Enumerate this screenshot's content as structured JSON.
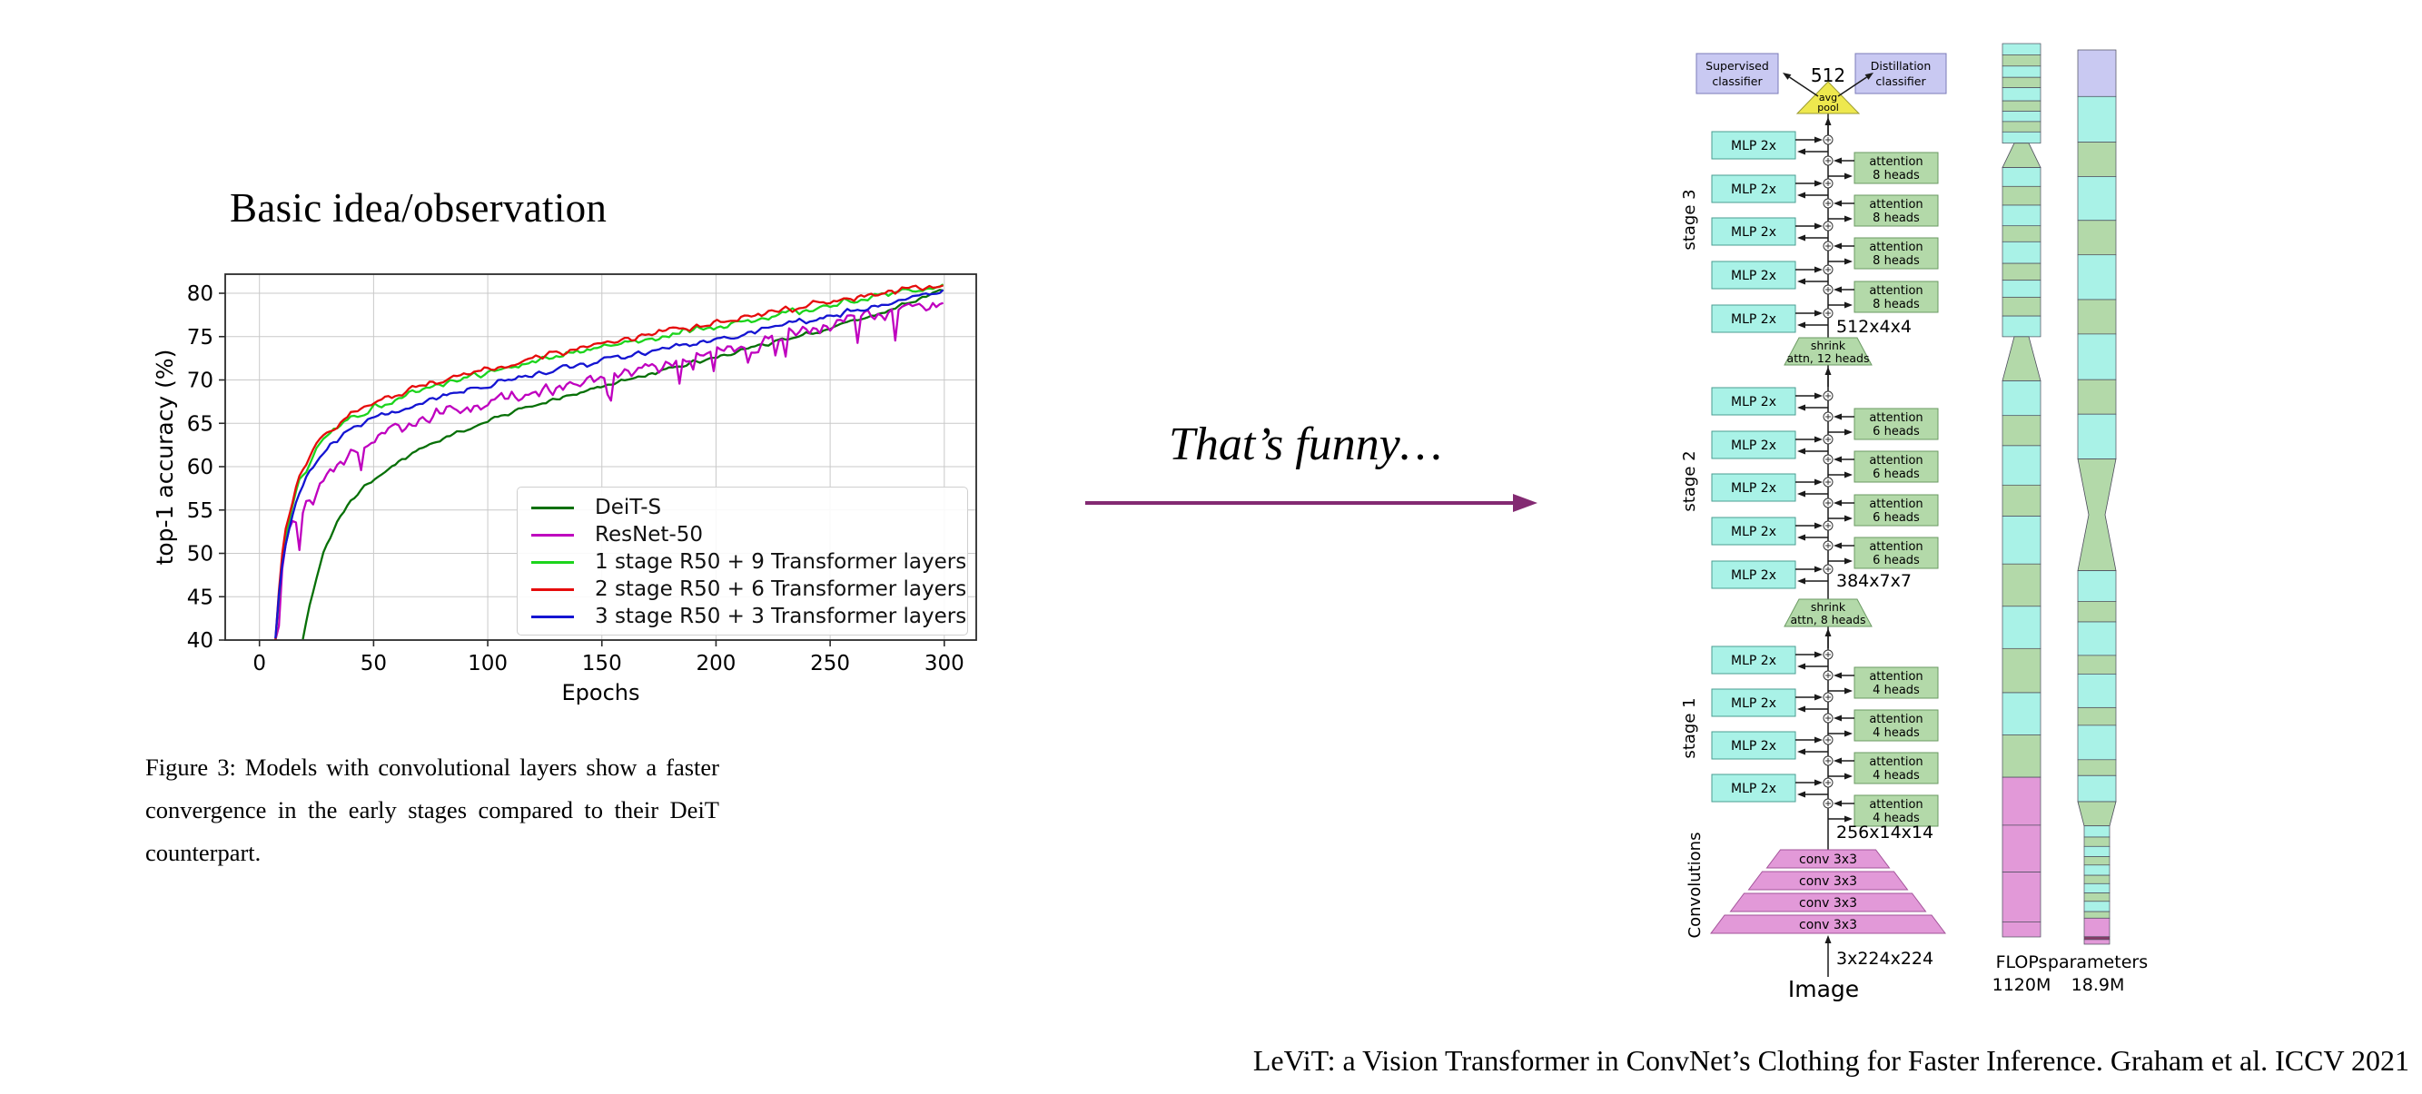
{
  "slide": {
    "title": "Basic idea/observation",
    "aside": "That’s funny…",
    "citation": "LeViT: a Vision Transformer in ConvNet’s Clothing for Faster Inference. Graham et al. ICCV 2021",
    "caption_lines": [
      "Figure 3:  Models with convolutional layers show a faster",
      "convergence in the early stages compared to their DeiT",
      "counterpart."
    ],
    "arrow_color": "#832a72"
  },
  "chart_data": {
    "type": "line",
    "title": "",
    "xlabel": "Epochs",
    "ylabel": "top-1 accuracy (%)",
    "xlim": [
      -15,
      314
    ],
    "ylim": [
      40,
      82.2
    ],
    "xticks": [
      0,
      50,
      100,
      150,
      200,
      250,
      300
    ],
    "yticks": [
      40,
      45,
      50,
      55,
      60,
      65,
      70,
      75,
      80
    ],
    "grid": true,
    "legend_position": "inside lower-right",
    "series": [
      {
        "name": "DeiT-S",
        "color": "#077007",
        "noise": 0.28,
        "points": [
          [
            19,
            40
          ],
          [
            22,
            44
          ],
          [
            25,
            47
          ],
          [
            28,
            50
          ],
          [
            32,
            52.5
          ],
          [
            36,
            54.5
          ],
          [
            40,
            56
          ],
          [
            45,
            57.5
          ],
          [
            50,
            58.5
          ],
          [
            60,
            60.5
          ],
          [
            70,
            62
          ],
          [
            80,
            63.2
          ],
          [
            90,
            64.3
          ],
          [
            100,
            65.3
          ],
          [
            110,
            66.2
          ],
          [
            120,
            67
          ],
          [
            130,
            67.8
          ],
          [
            140,
            68.5
          ],
          [
            150,
            69.2
          ],
          [
            160,
            70
          ],
          [
            170,
            70.6
          ],
          [
            180,
            71.3
          ],
          [
            190,
            72
          ],
          [
            200,
            72.6
          ],
          [
            210,
            73.3
          ],
          [
            220,
            74
          ],
          [
            230,
            74.6
          ],
          [
            240,
            75.3
          ],
          [
            250,
            76
          ],
          [
            260,
            76.8
          ],
          [
            270,
            77.6
          ],
          [
            280,
            78.5
          ],
          [
            290,
            79.4
          ],
          [
            297,
            80.2
          ],
          [
            300,
            80.4
          ]
        ]
      },
      {
        "name": "ResNet-50",
        "color": "#bf00bf",
        "noise": 1.0,
        "points": [
          [
            7,
            40
          ],
          [
            9,
            46
          ],
          [
            11,
            50
          ],
          [
            13,
            52.5
          ],
          [
            15,
            54
          ],
          [
            17,
            53.5
          ],
          [
            20,
            56
          ],
          [
            23,
            55.5
          ],
          [
            26,
            58
          ],
          [
            30,
            59
          ],
          [
            35,
            60.5
          ],
          [
            40,
            61.5
          ],
          [
            45,
            62.5
          ],
          [
            50,
            63
          ],
          [
            60,
            64.3
          ],
          [
            70,
            65.2
          ],
          [
            80,
            66
          ],
          [
            90,
            66.7
          ],
          [
            100,
            67.3
          ],
          [
            110,
            68
          ],
          [
            120,
            68.5
          ],
          [
            130,
            69.2
          ],
          [
            140,
            69.8
          ],
          [
            150,
            70.3
          ],
          [
            160,
            70.8
          ],
          [
            170,
            71.3
          ],
          [
            180,
            71.9
          ],
          [
            190,
            72.4
          ],
          [
            200,
            73
          ],
          [
            210,
            73.6
          ],
          [
            220,
            74.2
          ],
          [
            230,
            74.9
          ],
          [
            240,
            75.6
          ],
          [
            250,
            76.3
          ],
          [
            260,
            77
          ],
          [
            270,
            77.6
          ],
          [
            280,
            78.1
          ],
          [
            290,
            78.5
          ],
          [
            300,
            78.7
          ]
        ]
      },
      {
        "name": "1 stage R50 + 9 Transformer layers",
        "color": "#1cd41c",
        "noise": 0.5,
        "points": [
          [
            7,
            40
          ],
          [
            9,
            47
          ],
          [
            11,
            51.5
          ],
          [
            13,
            54
          ],
          [
            15,
            56
          ],
          [
            18,
            58.5
          ],
          [
            21,
            60
          ],
          [
            25,
            62
          ],
          [
            30,
            63.5
          ],
          [
            35,
            64.7
          ],
          [
            40,
            65.6
          ],
          [
            45,
            66.2
          ],
          [
            50,
            66.8
          ],
          [
            60,
            67.9
          ],
          [
            70,
            68.8
          ],
          [
            80,
            69.6
          ],
          [
            90,
            70.3
          ],
          [
            100,
            70.9
          ],
          [
            110,
            71.5
          ],
          [
            120,
            72.1
          ],
          [
            130,
            72.7
          ],
          [
            140,
            73.2
          ],
          [
            150,
            73.7
          ],
          [
            160,
            74.2
          ],
          [
            170,
            74.7
          ],
          [
            180,
            75.2
          ],
          [
            190,
            75.7
          ],
          [
            200,
            76.2
          ],
          [
            210,
            76.7
          ],
          [
            220,
            77.2
          ],
          [
            230,
            77.7
          ],
          [
            240,
            78.2
          ],
          [
            250,
            78.7
          ],
          [
            260,
            79.2
          ],
          [
            270,
            79.7
          ],
          [
            280,
            80.1
          ],
          [
            290,
            80.5
          ],
          [
            300,
            80.8
          ]
        ]
      },
      {
        "name": "2 stage R50 + 6 Transformer layers",
        "color": "#e60c0c",
        "noise": 0.45,
        "points": [
          [
            7,
            40
          ],
          [
            9,
            47.5
          ],
          [
            11,
            52
          ],
          [
            13,
            54.5
          ],
          [
            15,
            56.5
          ],
          [
            18,
            59
          ],
          [
            21,
            60.5
          ],
          [
            25,
            62.4
          ],
          [
            30,
            63.9
          ],
          [
            35,
            65
          ],
          [
            40,
            66
          ],
          [
            45,
            66.6
          ],
          [
            50,
            67.2
          ],
          [
            60,
            68.3
          ],
          [
            70,
            69.2
          ],
          [
            80,
            70
          ],
          [
            90,
            70.7
          ],
          [
            100,
            71.3
          ],
          [
            110,
            71.9
          ],
          [
            120,
            72.5
          ],
          [
            130,
            73.1
          ],
          [
            140,
            73.6
          ],
          [
            150,
            74.1
          ],
          [
            160,
            74.6
          ],
          [
            170,
            75.1
          ],
          [
            180,
            75.6
          ],
          [
            190,
            76.1
          ],
          [
            200,
            76.6
          ],
          [
            210,
            77.1
          ],
          [
            220,
            77.6
          ],
          [
            230,
            78.1
          ],
          [
            240,
            78.6
          ],
          [
            250,
            79
          ],
          [
            260,
            79.5
          ],
          [
            270,
            79.9
          ],
          [
            280,
            80.3
          ],
          [
            290,
            80.7
          ],
          [
            300,
            81
          ]
        ]
      },
      {
        "name": "3 stage R50 + 3 Transformer layers",
        "color": "#1414d2",
        "noise": 0.45,
        "points": [
          [
            7,
            40
          ],
          [
            9,
            46.5
          ],
          [
            11,
            50.5
          ],
          [
            13,
            53
          ],
          [
            15,
            55
          ],
          [
            18,
            57.5
          ],
          [
            21,
            59
          ],
          [
            25,
            60.8
          ],
          [
            30,
            62.2
          ],
          [
            35,
            63.3
          ],
          [
            40,
            64.2
          ],
          [
            45,
            64.9
          ],
          [
            50,
            65.5
          ],
          [
            60,
            66.5
          ],
          [
            70,
            67.4
          ],
          [
            80,
            68.1
          ],
          [
            90,
            68.8
          ],
          [
            100,
            69.4
          ],
          [
            110,
            70
          ],
          [
            120,
            70.6
          ],
          [
            130,
            71.2
          ],
          [
            140,
            71.7
          ],
          [
            150,
            72.2
          ],
          [
            160,
            72.7
          ],
          [
            170,
            73.2
          ],
          [
            180,
            73.7
          ],
          [
            190,
            74.2
          ],
          [
            200,
            74.8
          ],
          [
            210,
            75.3
          ],
          [
            220,
            75.8
          ],
          [
            230,
            76.3
          ],
          [
            240,
            76.9
          ],
          [
            250,
            77.4
          ],
          [
            260,
            78
          ],
          [
            270,
            78.6
          ],
          [
            280,
            79.2
          ],
          [
            290,
            79.8
          ],
          [
            300,
            80.2
          ]
        ]
      }
    ]
  },
  "architecture": {
    "supervised_label": [
      "Supervised",
      "classifier"
    ],
    "distillation_label": [
      "Distillation",
      "classifier"
    ],
    "width_label": "512",
    "pool_label": [
      "avg",
      "pool"
    ],
    "stages": [
      {
        "name": "stage 3",
        "mlp": "MLP 2x",
        "mlp_count": 5,
        "attn": [
          "attention",
          "8 heads"
        ],
        "attn_count": 4,
        "out": "512x4x4",
        "shrink": [
          "shrink",
          "attn, 12 heads"
        ]
      },
      {
        "name": "stage 2",
        "mlp": "MLP 2x",
        "mlp_count": 5,
        "attn": [
          "attention",
          "6 heads"
        ],
        "attn_count": 4,
        "out": "384x7x7",
        "shrink": [
          "shrink",
          "attn, 8 heads"
        ]
      },
      {
        "name": "stage 1",
        "mlp": "MLP 2x",
        "mlp_count": 4,
        "attn": [
          "attention",
          "4 heads"
        ],
        "attn_count": 4,
        "out": "256x14x14",
        "shrink": null
      }
    ],
    "conv": {
      "name": "Convolutions",
      "label": "conv 3x3",
      "count": 4,
      "input": "3x224x224",
      "image": "Image"
    },
    "bars": {
      "flops": {
        "title": "FLOPs",
        "value": "1120M",
        "segments": [
          [
            "c",
            12
          ],
          [
            "g",
            12
          ],
          [
            "c",
            12
          ],
          [
            "g",
            11
          ],
          [
            "c",
            14
          ],
          [
            "g",
            11
          ],
          [
            "c",
            11
          ],
          [
            "g",
            11
          ],
          [
            "c",
            12
          ],
          [
            "t0",
            26
          ],
          [
            "c",
            20
          ],
          [
            "g",
            20
          ],
          [
            "c",
            22
          ],
          [
            "g",
            17
          ],
          [
            "c",
            23
          ],
          [
            "g",
            18
          ],
          [
            "c",
            18
          ],
          [
            "g",
            20
          ],
          [
            "c",
            22
          ],
          [
            "t0",
            47
          ],
          [
            "c",
            37
          ],
          [
            "g",
            32
          ],
          [
            "c",
            42
          ],
          [
            "g",
            33
          ],
          [
            "c",
            51
          ],
          [
            "g",
            45
          ],
          [
            "c",
            45
          ],
          [
            "g",
            47
          ],
          [
            "c",
            45
          ],
          [
            "g",
            45
          ],
          [
            "p",
            51
          ],
          [
            "p",
            50
          ],
          [
            "p",
            53
          ],
          [
            "p",
            16
          ]
        ]
      },
      "params": {
        "title": "parameters",
        "value": "18.9M",
        "segments": [
          [
            "l",
            50
          ],
          [
            "c",
            49
          ],
          [
            "g",
            37
          ],
          [
            "c",
            47
          ],
          [
            "g",
            37
          ],
          [
            "c",
            48
          ],
          [
            "g",
            37
          ],
          [
            "c",
            49
          ],
          [
            "g",
            37
          ],
          [
            "c",
            48
          ],
          [
            "t1",
            120
          ],
          [
            "c",
            33
          ],
          [
            "g",
            22
          ],
          [
            "c",
            36
          ],
          [
            "g",
            20
          ],
          [
            "c",
            36
          ],
          [
            "g",
            19
          ],
          [
            "c",
            37
          ],
          [
            "g",
            17
          ],
          [
            "c",
            28
          ],
          [
            "t2",
            26
          ],
          [
            "nc",
            12
          ],
          [
            "ng",
            10
          ],
          [
            "nc",
            11
          ],
          [
            "ng",
            9
          ],
          [
            "nc",
            11
          ],
          [
            "ng",
            9
          ],
          [
            "nc",
            10
          ],
          [
            "ng",
            9
          ],
          [
            "nc",
            11
          ],
          [
            "ng",
            7
          ],
          [
            "np",
            20
          ],
          [
            "nd",
            3
          ],
          [
            "np",
            5
          ]
        ]
      }
    },
    "colors": {
      "cyan": "#a9f2e7",
      "green": "#b3d9a9",
      "lavender": "#c9c9f2",
      "yellow": "#eee84e",
      "pink": "#e299d8",
      "line": "#1a1a1a",
      "cyan_border": "#4a9d92",
      "green_border": "#6b9a63",
      "lavender_border": "#7b7bb8",
      "yellow_border": "#9a9a33",
      "pink_border": "#a3539a",
      "bar_border": "#4c4c5c",
      "dark_pink": "#8a3b68"
    }
  }
}
